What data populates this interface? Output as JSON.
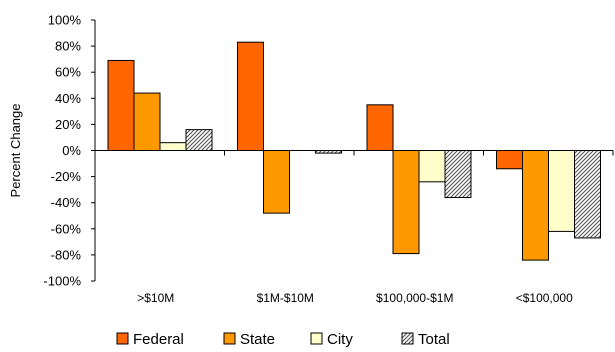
{
  "chart_data": {
    "type": "bar",
    "title": "",
    "xlabel": "",
    "ylabel": "Percent Change",
    "ylim": [
      -100,
      100
    ],
    "y_ticks": [
      -100,
      -80,
      -60,
      -40,
      -20,
      0,
      20,
      40,
      60,
      80,
      100
    ],
    "y_tick_labels": [
      "-100%",
      "-80%",
      "-60%",
      "-40%",
      "-20%",
      "0%",
      "20%",
      "40%",
      "60%",
      "80%",
      "100%"
    ],
    "categories": [
      ">$10M",
      "$1M-$10M",
      "$100,000-$1M",
      "<$100,000"
    ],
    "series": [
      {
        "name": "Federal",
        "values": [
          69,
          83,
          35,
          -14
        ],
        "color": "#ff6600",
        "pattern": "solid"
      },
      {
        "name": "State",
        "values": [
          44,
          -48,
          -79,
          -84
        ],
        "color": "#ff9900",
        "pattern": "solid"
      },
      {
        "name": "City",
        "values": [
          6,
          0,
          -24,
          -62
        ],
        "color": "#ffffcc",
        "pattern": "solid"
      },
      {
        "name": "Total",
        "values": [
          16,
          -2,
          -36,
          -67
        ],
        "color": "#c0c0c0",
        "pattern": "diagonal-hatch"
      }
    ],
    "legend_position": "bottom",
    "grid": false
  }
}
